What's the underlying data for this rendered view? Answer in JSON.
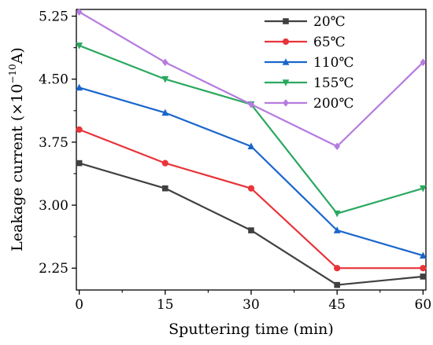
{
  "chart_data": {
    "type": "line",
    "xlabel": "Sputtering time (min)",
    "ylabel_main": "Leakage current (×10",
    "ylabel_exp": "−10",
    "ylabel_unit": "A)",
    "x": [
      0,
      15,
      30,
      45,
      60
    ],
    "x_tick_labels": [
      "0",
      "15",
      "30",
      "45",
      "60"
    ],
    "xlim": [
      -0.5,
      60.5
    ],
    "ylim": [
      1.99,
      5.33
    ],
    "y_ticks": [
      2.25,
      3.0,
      3.75,
      4.5,
      5.25
    ],
    "y_tick_labels": [
      "2.25",
      "3.00",
      "3.75",
      "4.50",
      "5.25"
    ],
    "grid": false,
    "legend_position": "top-right",
    "series": [
      {
        "name": "20℃",
        "color": "#404040",
        "marker": "square",
        "values": [
          3.5,
          3.2,
          2.7,
          2.05,
          2.15
        ]
      },
      {
        "name": "65℃",
        "color": "#e8343a",
        "marker": "circle",
        "values": [
          3.9,
          3.5,
          3.2,
          2.25,
          2.25
        ]
      },
      {
        "name": "110℃",
        "color": "#1a66cc",
        "marker": "triangle-up",
        "values": [
          4.4,
          4.1,
          3.7,
          2.7,
          2.4
        ]
      },
      {
        "name": "155℃",
        "color": "#2ba860",
        "marker": "triangle-down",
        "values": [
          4.9,
          4.5,
          4.2,
          2.9,
          3.2
        ]
      },
      {
        "name": "200℃",
        "color": "#b57be0",
        "marker": "diamond",
        "values": [
          5.3,
          4.7,
          4.2,
          3.7,
          4.7
        ]
      }
    ]
  }
}
